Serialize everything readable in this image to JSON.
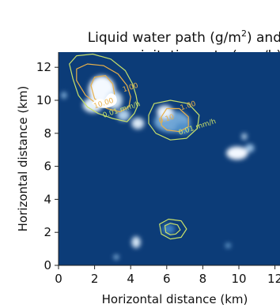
{
  "chart_data": {
    "type": "heatmap",
    "title_line1": "Liquid water path (g/m",
    "title_sup": "2",
    "title_line1_end": ") and",
    "title_line2": "precipitation rate (mm/h)",
    "xlabel": "Horizontal distance (km)",
    "ylabel": "Horizontal distance (km)",
    "xlim": [
      0,
      12.4
    ],
    "ylim": [
      0,
      12.8
    ],
    "x_ticks": [
      {
        "value": 0,
        "label": "0"
      },
      {
        "value": 2,
        "label": "2"
      },
      {
        "value": 4,
        "label": "4"
      },
      {
        "value": 6,
        "label": "6"
      },
      {
        "value": 8,
        "label": "8"
      },
      {
        "value": 10,
        "label": "10"
      },
      {
        "value": 12,
        "label": "12"
      }
    ],
    "y_ticks": [
      {
        "value": 0,
        "label": "0"
      },
      {
        "value": 2,
        "label": "2"
      },
      {
        "value": 4,
        "label": "4"
      },
      {
        "value": 6,
        "label": "6"
      },
      {
        "value": 8,
        "label": "8"
      },
      {
        "value": 10,
        "label": "10"
      },
      {
        "value": 12,
        "label": "12"
      }
    ],
    "background_color": "#0c3c78",
    "lwp_cells": [
      {
        "x": 2.4,
        "y": 10.6,
        "rx": 0.75,
        "ry": 0.9,
        "color": "#f4f9ff"
      },
      {
        "x": 1.9,
        "y": 9.7,
        "rx": 0.55,
        "ry": 0.45,
        "color": "#e6f1fb"
      },
      {
        "x": 3.1,
        "y": 10.0,
        "rx": 0.45,
        "ry": 0.55,
        "color": "#c9def1"
      },
      {
        "x": 3.6,
        "y": 9.1,
        "rx": 0.35,
        "ry": 0.35,
        "color": "#b0cfe9"
      },
      {
        "x": 4.4,
        "y": 8.6,
        "rx": 0.35,
        "ry": 0.35,
        "color": "#d9e8f6"
      },
      {
        "x": 6.3,
        "y": 8.7,
        "rx": 1.0,
        "ry": 0.65,
        "color": "#6fa6d6"
      },
      {
        "x": 5.9,
        "y": 9.3,
        "rx": 0.45,
        "ry": 0.4,
        "color": "#e8f2fc"
      },
      {
        "x": 6.9,
        "y": 8.3,
        "rx": 0.45,
        "ry": 0.35,
        "color": "#4f8fc9"
      },
      {
        "x": 9.9,
        "y": 6.8,
        "rx": 0.6,
        "ry": 0.4,
        "color": "#f2f8ff"
      },
      {
        "x": 10.6,
        "y": 7.1,
        "rx": 0.25,
        "ry": 0.25,
        "color": "#9cc3e6"
      },
      {
        "x": 10.3,
        "y": 7.8,
        "rx": 0.15,
        "ry": 0.2,
        "color": "#b7d4ee"
      },
      {
        "x": 4.3,
        "y": 1.4,
        "rx": 0.25,
        "ry": 0.35,
        "color": "#d3e5f5"
      },
      {
        "x": 6.1,
        "y": 2.2,
        "rx": 0.35,
        "ry": 0.3,
        "color": "#3d7fbf"
      },
      {
        "x": 3.2,
        "y": 0.5,
        "rx": 0.15,
        "ry": 0.15,
        "color": "#8ab8e1"
      },
      {
        "x": 9.4,
        "y": 1.2,
        "rx": 0.15,
        "ry": 0.15,
        "color": "#6fa6d6"
      },
      {
        "x": 0.3,
        "y": 10.3,
        "rx": 0.15,
        "ry": 0.2,
        "color": "#8ab8e1"
      }
    ],
    "contours": [
      {
        "color": "#c8e06a",
        "points": [
          [
            0.8,
            11.3
          ],
          [
            0.6,
            12.2
          ],
          [
            1.0,
            12.7
          ],
          [
            1.9,
            12.8
          ],
          [
            2.9,
            12.5
          ],
          [
            3.7,
            11.8
          ],
          [
            4.1,
            11.0
          ],
          [
            4.3,
            10.3
          ],
          [
            4.4,
            9.7
          ],
          [
            4.2,
            9.2
          ],
          [
            3.8,
            8.7
          ],
          [
            3.0,
            8.9
          ],
          [
            2.2,
            9.2
          ],
          [
            1.6,
            9.6
          ],
          [
            1.1,
            10.3
          ]
        ]
      },
      {
        "color": "#e8b04a",
        "points": [
          [
            1.0,
            11.2
          ],
          [
            1.0,
            11.9
          ],
          [
            1.6,
            12.2
          ],
          [
            2.5,
            12.1
          ],
          [
            3.3,
            11.6
          ],
          [
            3.8,
            10.9
          ],
          [
            4.0,
            10.2
          ],
          [
            3.9,
            9.6
          ],
          [
            3.4,
            9.3
          ],
          [
            2.7,
            9.5
          ],
          [
            2.1,
            9.8
          ],
          [
            1.5,
            10.3
          ]
        ]
      },
      {
        "color": "#e8b04a",
        "points": [
          [
            1.8,
            10.9
          ],
          [
            2.0,
            11.4
          ],
          [
            2.6,
            11.5
          ],
          [
            3.0,
            11.0
          ],
          [
            3.1,
            10.4
          ],
          [
            2.9,
            9.9
          ],
          [
            2.4,
            9.8
          ],
          [
            2.0,
            10.1
          ]
        ]
      },
      {
        "color": "#c8e06a",
        "points": [
          [
            5.0,
            9.1
          ],
          [
            5.3,
            9.8
          ],
          [
            6.2,
            10.0
          ],
          [
            7.2,
            9.8
          ],
          [
            7.8,
            9.1
          ],
          [
            7.7,
            8.3
          ],
          [
            7.1,
            7.7
          ],
          [
            6.2,
            7.6
          ],
          [
            5.4,
            8.0
          ],
          [
            5.0,
            8.6
          ]
        ]
      },
      {
        "color": "#e8b04a",
        "points": [
          [
            5.7,
            9.0
          ],
          [
            6.0,
            9.5
          ],
          [
            6.7,
            9.5
          ],
          [
            7.2,
            9.0
          ],
          [
            7.2,
            8.4
          ],
          [
            6.7,
            8.1
          ],
          [
            6.0,
            8.2
          ],
          [
            5.7,
            8.5
          ]
        ]
      },
      {
        "color": "#c8e06a",
        "points": [
          [
            5.7,
            1.9
          ],
          [
            5.6,
            2.5
          ],
          [
            6.1,
            2.8
          ],
          [
            6.8,
            2.7
          ],
          [
            7.1,
            2.2
          ],
          [
            6.8,
            1.7
          ],
          [
            6.2,
            1.6
          ]
        ]
      },
      {
        "color": "#c8e06a",
        "points": [
          [
            5.95,
            2.0
          ],
          [
            5.9,
            2.4
          ],
          [
            6.2,
            2.55
          ],
          [
            6.6,
            2.45
          ],
          [
            6.75,
            2.15
          ],
          [
            6.5,
            1.9
          ],
          [
            6.2,
            1.85
          ]
        ]
      }
    ],
    "precip_cell": {
      "x": 2.4,
      "y": 10.0,
      "color": "#ffffff"
    },
    "contour_labels": [
      {
        "text": "10.00",
        "x": 2.0,
        "y": 9.5,
        "color": "#e8b04a"
      },
      {
        "text": "0.01 mm/h",
        "x": 2.5,
        "y": 8.95,
        "color": "#c8e06a"
      },
      {
        "text": "1.00",
        "x": 3.6,
        "y": 10.5,
        "color": "#e8b04a"
      },
      {
        "text": "1.00",
        "x": 6.8,
        "y": 9.4,
        "color": "#e8b04a"
      },
      {
        "text": "0.10",
        "x": 5.6,
        "y": 8.6,
        "color": "#e8b04a"
      },
      {
        "text": "0.01 mm/h",
        "x": 6.7,
        "y": 7.9,
        "color": "#c8e06a"
      }
    ]
  }
}
